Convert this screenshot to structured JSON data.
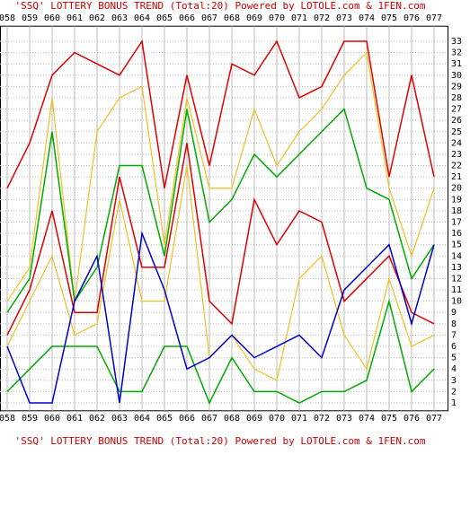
{
  "chart_data": {
    "type": "line",
    "title": "'SSQ' LOTTERY BONUS TREND (Total:20)  Powered by LOTOLE.com & 1FEN.com",
    "bottom_title": "'SSQ' LOTTERY BONUS TREND (Total:20)  Powered by LOTOLE.com & 1FEN.com",
    "categories": [
      "058",
      "059",
      "060",
      "061",
      "062",
      "063",
      "064",
      "065",
      "066",
      "067",
      "068",
      "069",
      "070",
      "071",
      "072",
      "073",
      "074",
      "075",
      "076",
      "077"
    ],
    "series": [
      {
        "color": "#dd0000",
        "values": [
          20,
          24,
          30,
          32,
          31,
          30,
          33,
          20,
          30,
          22,
          31,
          30,
          33,
          28,
          29,
          33,
          33,
          21,
          30,
          21
        ]
      },
      {
        "color": "#f0c020",
        "values": [
          10,
          13,
          28,
          10,
          25,
          28,
          29,
          15,
          28,
          20,
          20,
          27,
          22,
          25,
          27,
          30,
          32,
          20,
          14,
          20
        ]
      },
      {
        "color": "#00aa00",
        "values": [
          9,
          12,
          25,
          10,
          13,
          22,
          22,
          14,
          27,
          17,
          19,
          23,
          21,
          23,
          25,
          27,
          20,
          19,
          12,
          15
        ]
      },
      {
        "color": "#dd0000",
        "values": [
          7,
          11,
          18,
          9,
          9,
          21,
          13,
          13,
          24,
          10,
          8,
          19,
          15,
          18,
          17,
          10,
          12,
          14,
          9,
          8
        ]
      },
      {
        "color": "#f0c020",
        "values": [
          6,
          10,
          14,
          7,
          8,
          19,
          10,
          10,
          22,
          5,
          7,
          4,
          3,
          12,
          14,
          7,
          4,
          12,
          6,
          7
        ]
      },
      {
        "color": "#00aa00",
        "values": [
          2,
          4,
          6,
          6,
          6,
          2,
          2,
          6,
          6,
          1,
          5,
          2,
          2,
          1,
          2,
          2,
          3,
          10,
          2,
          4
        ]
      },
      {
        "color": "#0000cc",
        "values": [
          6,
          1,
          1,
          10,
          14,
          1,
          16,
          11,
          4,
          5,
          7,
          5,
          6,
          7,
          5,
          11,
          13,
          15,
          8,
          15
        ]
      }
    ],
    "ylim": [
      0.3,
      33.7
    ],
    "yticks": [
      1,
      2,
      3,
      4,
      5,
      6,
      7,
      8,
      9,
      10,
      11,
      12,
      13,
      14,
      15,
      16,
      17,
      18,
      19,
      20,
      21,
      22,
      23,
      24,
      25,
      26,
      27,
      28,
      29,
      30,
      31,
      32,
      33
    ],
    "grid": true
  }
}
